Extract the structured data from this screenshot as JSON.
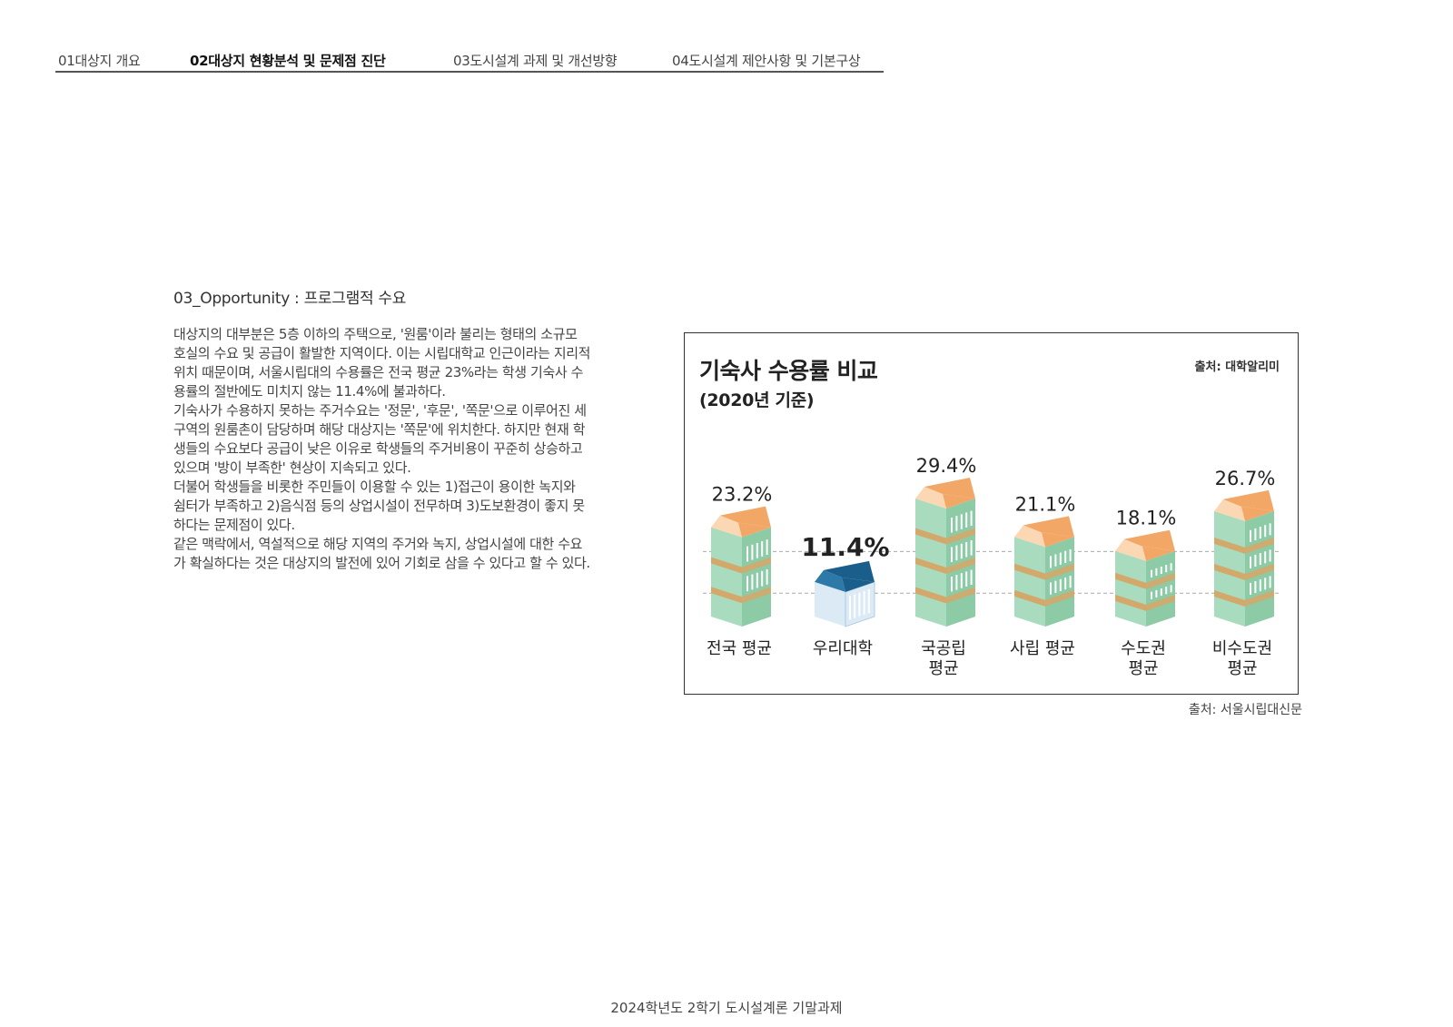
{
  "nav": {
    "tabs": [
      {
        "label": "01대상지 개요",
        "active": false
      },
      {
        "label": "02대상지 현황분석 및 문제점 진단",
        "active": true
      },
      {
        "label": "03도시설계 과제 및 개선방향",
        "active": false
      },
      {
        "label": "04도시설계 제안사항 및 기본구상",
        "active": false
      }
    ]
  },
  "section": {
    "title": "03_Opportunity : 프로그램적 수요",
    "paragraphs": [
      "대상지의 대부분은 5층 이하의 주택으로, '원룸'이라 불리는 형태의 소규모 호실의 수요 및 공급이 활발한 지역이다. 이는 시립대학교 인근이라는 지리적 위치 때문이며, 서울시립대의 수용률은 전국 평균 23%라는 학생 기숙사 수용률의 절반에도 미치지 않는 11.4%에 불과하다.",
      "기숙사가 수용하지 못하는 주거수요는 '정문', '후문', '쪽문'으로 이루어진 세 구역의 원룸촌이 담당하며 해당 대상지는 '쪽문'에 위치한다. 하지만 현재 학생들의 수요보다 공급이 낮은 이유로 학생들의 주거비용이 꾸준히 상승하고 있으며 '방이 부족한' 현상이 지속되고 있다.",
      "더불어 학생들을 비롯한 주민들이 이용할 수 있는 1)접근이 용이한 녹지와 쉼터가 부족하고 2)음식점 등의 상업시설이 전무하며 3)도보환경이 좋지 못하다는 문제점이 있다.",
      "같은 맥락에서, 역설적으로 해당 지역의 주거와 녹지, 상업시설에 대한 수요가 확실하다는 것은 대상지의 발전에 있어 기회로 삼을 수 있다고 할 수 있다."
    ]
  },
  "chart_data": {
    "type": "bar",
    "title": "기숙사 수용률 비교",
    "subtitle": "(2020년 기준)",
    "source": "출처: 대학알리미",
    "categories": [
      [
        "전국 평균"
      ],
      [
        "우리대학"
      ],
      [
        "국공립",
        "평균"
      ],
      [
        "사립 평균"
      ],
      [
        "수도권",
        "평균"
      ],
      [
        "비수도권",
        "평균"
      ]
    ],
    "values": [
      23.2,
      11.4,
      29.4,
      21.1,
      18.1,
      26.7
    ],
    "value_labels": [
      "23.2%",
      "11.4%",
      "29.4%",
      "21.1%",
      "18.1%",
      "26.7%"
    ],
    "highlight_index": 1,
    "grid": true,
    "colors": {
      "front": "#a9dcbf",
      "side": "#8ccba6",
      "band": "#d3a86b",
      "roof_front": "#fbd7b4",
      "roof_side": "#f2a766",
      "window": "#ffffff",
      "highlight_front": "#dbeaf5",
      "highlight_roof": "#2d79a8",
      "highlight_roof_side": "#1a5f8c",
      "grid": "#aaaaaa"
    }
  },
  "caption": "출처: 서울시립대신문",
  "footer": "2024학년도 2학기 도시설계론 기말과제"
}
